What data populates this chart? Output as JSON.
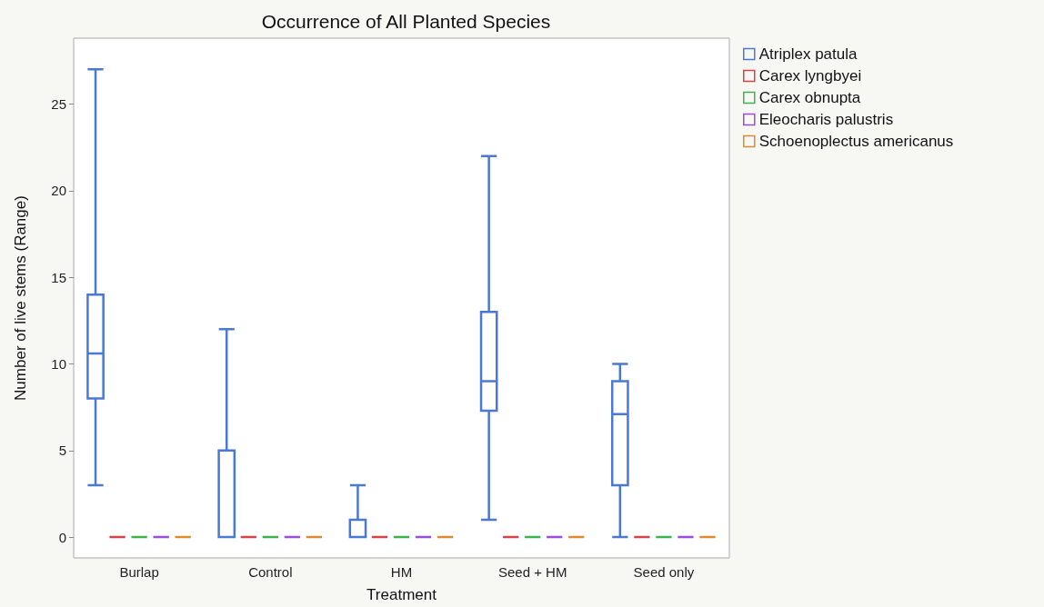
{
  "chart_data": {
    "type": "box",
    "title": "Occurrence of All Planted Species",
    "xlabel": "Treatment",
    "ylabel": "Number of live stems (Range)",
    "categories": [
      "Burlap",
      "Control",
      "HM",
      "Seed + HM",
      "Seed only"
    ],
    "ylim": [
      -1.2,
      28.8
    ],
    "yticks": [
      0,
      5,
      10,
      15,
      20,
      25
    ],
    "grid": false,
    "legend": "top right",
    "series": [
      {
        "name": "Atriplex patula",
        "color": "#4a78d6",
        "boxes": [
          {
            "low": 3,
            "q1": 8,
            "median": 10.6,
            "q3": 14,
            "high": 27
          },
          {
            "low": 0,
            "q1": 0,
            "median": 0,
            "q3": 5,
            "high": 12
          },
          {
            "low": 0,
            "q1": 0,
            "median": 0,
            "q3": 1,
            "high": 3
          },
          {
            "low": 1,
            "q1": 7.3,
            "median": 9,
            "q3": 13,
            "high": 22
          },
          {
            "low": 0,
            "q1": 3,
            "median": 7.1,
            "q3": 9,
            "high": 10
          }
        ]
      },
      {
        "name": "Carex lyngbyei",
        "color": "#d8404a",
        "boxes": [
          {
            "low": 0,
            "q1": 0,
            "median": 0,
            "q3": 0,
            "high": 0
          },
          {
            "low": 0,
            "q1": 0,
            "median": 0,
            "q3": 0,
            "high": 0
          },
          {
            "low": 0,
            "q1": 0,
            "median": 0,
            "q3": 0,
            "high": 0
          },
          {
            "low": 0,
            "q1": 0,
            "median": 0,
            "q3": 0,
            "high": 0
          },
          {
            "low": 0,
            "q1": 0,
            "median": 0,
            "q3": 0,
            "high": 0
          }
        ]
      },
      {
        "name": "Carex obnupta",
        "color": "#3cb44a",
        "boxes": [
          {
            "low": 0,
            "q1": 0,
            "median": 0,
            "q3": 0,
            "high": 0
          },
          {
            "low": 0,
            "q1": 0,
            "median": 0,
            "q3": 0,
            "high": 0
          },
          {
            "low": 0,
            "q1": 0,
            "median": 0,
            "q3": 0,
            "high": 0
          },
          {
            "low": 0,
            "q1": 0,
            "median": 0,
            "q3": 0,
            "high": 0
          },
          {
            "low": 0,
            "q1": 0,
            "median": 0,
            "q3": 0,
            "high": 0
          }
        ]
      },
      {
        "name": "Eleocharis palustris",
        "color": "#9b4be0",
        "boxes": [
          {
            "low": 0,
            "q1": 0,
            "median": 0,
            "q3": 0,
            "high": 0
          },
          {
            "low": 0,
            "q1": 0,
            "median": 0,
            "q3": 0,
            "high": 0
          },
          {
            "low": 0,
            "q1": 0,
            "median": 0,
            "q3": 0,
            "high": 0
          },
          {
            "low": 0,
            "q1": 0,
            "median": 0,
            "q3": 0,
            "high": 0
          },
          {
            "low": 0,
            "q1": 0,
            "median": 0,
            "q3": 0,
            "high": 0
          }
        ]
      },
      {
        "name": "Schoenoplectus americanus",
        "color": "#e08a2c",
        "boxes": [
          {
            "low": 0,
            "q1": 0,
            "median": 0,
            "q3": 0,
            "high": 0
          },
          {
            "low": 0,
            "q1": 0,
            "median": 0,
            "q3": 0,
            "high": 0
          },
          {
            "low": 0,
            "q1": 0,
            "median": 0,
            "q3": 0,
            "high": 0
          },
          {
            "low": 0,
            "q1": 0,
            "median": 0,
            "q3": 0,
            "high": 0
          },
          {
            "low": 0,
            "q1": 0,
            "median": 0,
            "q3": 0,
            "high": 0
          }
        ]
      }
    ]
  }
}
